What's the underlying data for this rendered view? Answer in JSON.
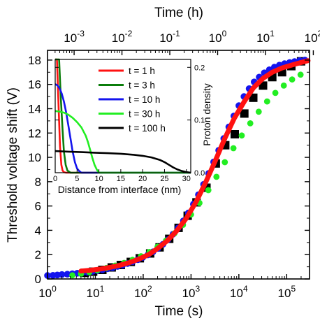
{
  "chart_data": [
    {
      "type": "scatter",
      "title": "",
      "xlabel": "Time (s)",
      "ylabel": "Threshold voltage shift (V)",
      "x2label": "Time (h)",
      "xscale": "log",
      "xlim": [
        1,
        300000
      ],
      "ylim": [
        0,
        18.8
      ],
      "xticks": [
        {
          "value": 1,
          "mant": "10",
          "exp": "0"
        },
        {
          "value": 10,
          "mant": "10",
          "exp": "1"
        },
        {
          "value": 100,
          "mant": "10",
          "exp": "2"
        },
        {
          "value": 1000,
          "mant": "10",
          "exp": "3"
        },
        {
          "value": 10000,
          "mant": "10",
          "exp": "4"
        },
        {
          "value": 100000,
          "mant": "10",
          "exp": "5"
        }
      ],
      "x2ticks": [
        {
          "value": 0.001,
          "mant": "10",
          "exp": "-3"
        },
        {
          "value": 0.01,
          "mant": "10",
          "exp": "-2"
        },
        {
          "value": 0.1,
          "mant": "10",
          "exp": "-1"
        },
        {
          "value": 1,
          "mant": "10",
          "exp": "0"
        },
        {
          "value": 10,
          "mant": "10",
          "exp": "1"
        },
        {
          "value": 100,
          "mant": "10",
          "exp": "2"
        }
      ],
      "yticks": [
        "0",
        "2",
        "4",
        "6",
        "8",
        "10",
        "12",
        "14",
        "16",
        "18"
      ],
      "series": [
        {
          "color": "#000000",
          "marker": "square",
          "x": [
            6,
            9,
            14,
            22,
            34,
            55,
            85,
            140,
            220,
            350,
            550,
            850,
            1300,
            2100,
            3300,
            5200,
            8200,
            13000,
            20000,
            32000,
            50000,
            80000,
            125000,
            200000
          ],
          "y": [
            0.5,
            0.6,
            0.75,
            0.95,
            1.15,
            1.4,
            1.7,
            2.1,
            2.6,
            3.3,
            4.2,
            5.2,
            6.3,
            7.5,
            9.5,
            11.0,
            11.9,
            13.6,
            14.9,
            15.9,
            16.6,
            17.0,
            17.5,
            17.9
          ]
        },
        {
          "color": "#1414ee",
          "marker": "circle",
          "x": [
            1.0,
            1.3,
            1.6,
            2.0,
            2.6,
            3.3,
            4.2,
            5.3,
            6.8,
            8.7,
            11,
            14,
            18,
            23,
            29,
            37,
            47,
            60,
            77,
            98,
            125,
            160,
            204,
            260,
            330,
            420,
            540,
            690,
            880,
            1120,
            1430,
            1830,
            2330,
            2970,
            3790,
            4840,
            6170,
            7870,
            10000,
            12800,
            16400,
            20900,
            26600,
            34000,
            43400,
            55300,
            70500,
            90000,
            115000,
            146000,
            187000,
            240000
          ],
          "y": [
            0.28,
            0.3,
            0.33,
            0.36,
            0.39,
            0.43,
            0.47,
            0.51,
            0.56,
            0.62,
            0.69,
            0.76,
            0.84,
            0.93,
            1.03,
            1.14,
            1.27,
            1.42,
            1.58,
            1.77,
            1.98,
            2.23,
            2.51,
            2.85,
            3.23,
            3.68,
            4.2,
            4.78,
            5.43,
            6.15,
            6.93,
            7.78,
            8.68,
            9.62,
            10.58,
            11.55,
            12.5,
            13.4,
            14.25,
            15.0,
            15.65,
            16.2,
            16.6,
            16.95,
            17.2,
            17.42,
            17.58,
            17.7,
            17.8,
            17.88,
            17.95,
            18.0
          ]
        },
        {
          "color": "#22ee22",
          "marker": "circle",
          "x": [
            3.3,
            5,
            7.5,
            11,
            17,
            26,
            40,
            60,
            90,
            135,
            200,
            300,
            450,
            680,
            1000,
            1500,
            2300,
            3400,
            5100,
            7700,
            11500,
            17300,
            26000,
            39000,
            58000,
            87000,
            130000,
            195000
          ],
          "y": [
            0.3,
            0.42,
            0.56,
            0.72,
            0.9,
            1.1,
            1.32,
            1.57,
            1.87,
            2.22,
            2.65,
            3.15,
            3.75,
            4.45,
            5.3,
            6.25,
            7.3,
            8.4,
            9.6,
            10.75,
            11.8,
            12.8,
            13.75,
            14.6,
            15.3,
            15.9,
            16.4,
            16.8
          ]
        },
        {
          "color": "#ff1111",
          "marker": "line",
          "x": [
            5,
            8,
            13,
            20,
            32,
            50,
            80,
            130,
            200,
            320,
            500,
            800,
            1300,
            2000,
            3200,
            5000,
            8000,
            13000,
            20000,
            32000,
            50000,
            80000,
            130000,
            200000,
            280000
          ],
          "y": [
            0.65,
            0.72,
            0.82,
            0.95,
            1.12,
            1.33,
            1.62,
            2.0,
            2.5,
            3.15,
            3.95,
            5.0,
            6.4,
            7.9,
            9.7,
            11.5,
            13.2,
            14.6,
            15.7,
            16.5,
            17.0,
            17.35,
            17.6,
            17.8,
            17.95
          ]
        }
      ]
    },
    {
      "type": "line",
      "title": "",
      "xlabel": "Distance from interface (nm)",
      "ylabel": "Proton density",
      "xlim": [
        0,
        31
      ],
      "ylim": [
        0,
        0.215
      ],
      "xticks": [
        "0",
        "5",
        "10",
        "15",
        "20",
        "25",
        "30"
      ],
      "yticks": [
        "0.0",
        "0.1",
        "0.2"
      ],
      "legend_position": "top-center",
      "series": [
        {
          "name": "t = 1 h",
          "color": "#ff1111",
          "x": [
            0,
            0.4,
            0.8,
            1.1,
            1.4,
            1.7,
            2.0,
            2.5,
            31
          ],
          "y": [
            0.215,
            0.215,
            0.12,
            0.05,
            0.015,
            0.004,
            0.001,
            0,
            0
          ]
        },
        {
          "name": "t = 3 h",
          "color": "#0b7d0b",
          "x": [
            0,
            0.9,
            1.3,
            1.7,
            2.0,
            2.4,
            2.8,
            3.5,
            31
          ],
          "y": [
            0.215,
            0.215,
            0.14,
            0.08,
            0.04,
            0.015,
            0.004,
            0,
            0
          ]
        },
        {
          "name": "t = 10 h",
          "color": "#1414ee",
          "x": [
            0,
            0.5,
            1.0,
            1.5,
            2.0,
            2.5,
            3.0,
            3.5,
            4.0,
            4.5,
            5.0,
            5.5,
            6.0,
            31
          ],
          "y": [
            0.168,
            0.166,
            0.16,
            0.15,
            0.135,
            0.115,
            0.09,
            0.065,
            0.04,
            0.02,
            0.008,
            0.003,
            0,
            0
          ]
        },
        {
          "name": "t = 30 h",
          "color": "#22ee22",
          "x": [
            0,
            1,
            2,
            3,
            4,
            5,
            6,
            7,
            7.5,
            8,
            8.5,
            9,
            9.5,
            10,
            31
          ],
          "y": [
            0.117,
            0.116,
            0.114,
            0.11,
            0.104,
            0.096,
            0.086,
            0.07,
            0.058,
            0.043,
            0.028,
            0.015,
            0.006,
            0,
            0
          ]
        },
        {
          "name": "t = 100 h",
          "color": "#000000",
          "x": [
            0,
            3,
            6,
            9,
            12,
            15,
            18,
            20,
            22,
            24,
            25,
            26,
            27,
            28,
            29,
            30,
            31
          ],
          "y": [
            0.041,
            0.04,
            0.039,
            0.038,
            0.037,
            0.036,
            0.034,
            0.032,
            0.029,
            0.024,
            0.02,
            0.015,
            0.01,
            0.006,
            0.003,
            0.001,
            0
          ]
        }
      ]
    }
  ]
}
